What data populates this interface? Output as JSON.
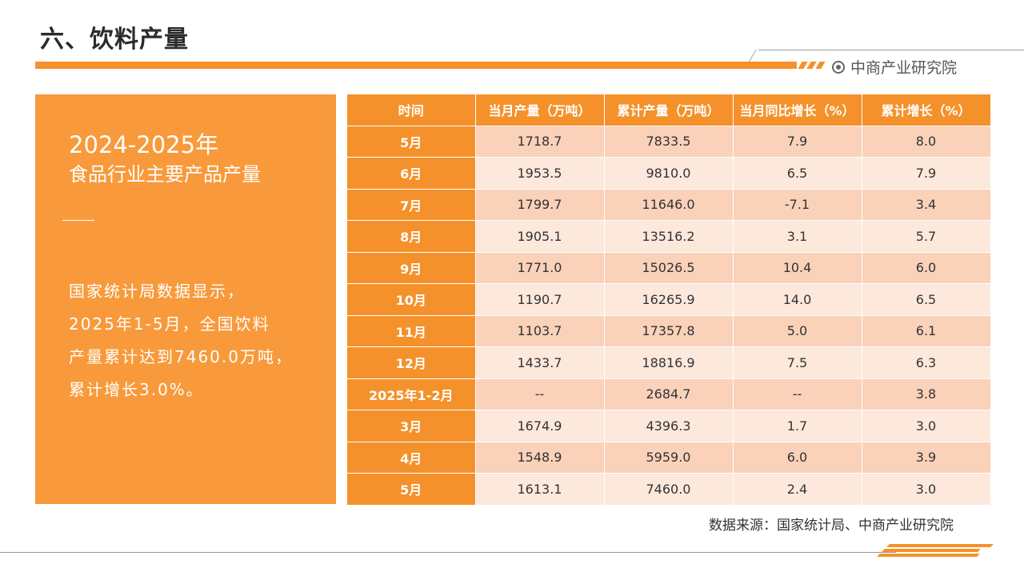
{
  "page_title": "六、饮料产量",
  "brand": "中商产业研究院",
  "left_panel": {
    "year": "2024-2025年",
    "subtitle": "食品行业主要产品产量",
    "body_lines": [
      "国家统计局数据显示，",
      "2025年1-5月，全国饮料",
      "产量累计达到7460.0万吨，",
      "累计增长3.0%。"
    ]
  },
  "table": {
    "headers": [
      "时间",
      "当月产量（万吨）",
      "累计产量（万吨）",
      "当月同比增长（%）",
      "累计增长（%）"
    ],
    "rows": [
      [
        "5月",
        "1718.7",
        "7833.5",
        "7.9",
        "8.0"
      ],
      [
        "6月",
        "1953.5",
        "9810.0",
        "6.5",
        "7.9"
      ],
      [
        "7月",
        "1799.7",
        "11646.0",
        "-7.1",
        "3.4"
      ],
      [
        "8月",
        "1905.1",
        "13516.2",
        "3.1",
        "5.7"
      ],
      [
        "9月",
        "1771.0",
        "15026.5",
        "10.4",
        "6.0"
      ],
      [
        "10月",
        "1190.7",
        "16265.9",
        "14.0",
        "6.5"
      ],
      [
        "11月",
        "1103.7",
        "17357.8",
        "5.0",
        "6.1"
      ],
      [
        "12月",
        "1433.7",
        "18816.9",
        "7.5",
        "6.3"
      ],
      [
        "2025年1-2月",
        "--",
        "2684.7",
        "--",
        "3.8"
      ],
      [
        "3月",
        "1674.9",
        "4396.3",
        "1.7",
        "3.0"
      ],
      [
        "4月",
        "1548.9",
        "5959.0",
        "6.0",
        "3.9"
      ],
      [
        "5月",
        "1613.1",
        "7460.0",
        "2.4",
        "3.0"
      ]
    ]
  },
  "source": "数据来源：国家统计局、中商产业研究院",
  "colors": {
    "accent": "#f5912a",
    "panel": "#f89a3b",
    "row_dark": "#fad1b9",
    "row_light": "#fde8dc"
  }
}
